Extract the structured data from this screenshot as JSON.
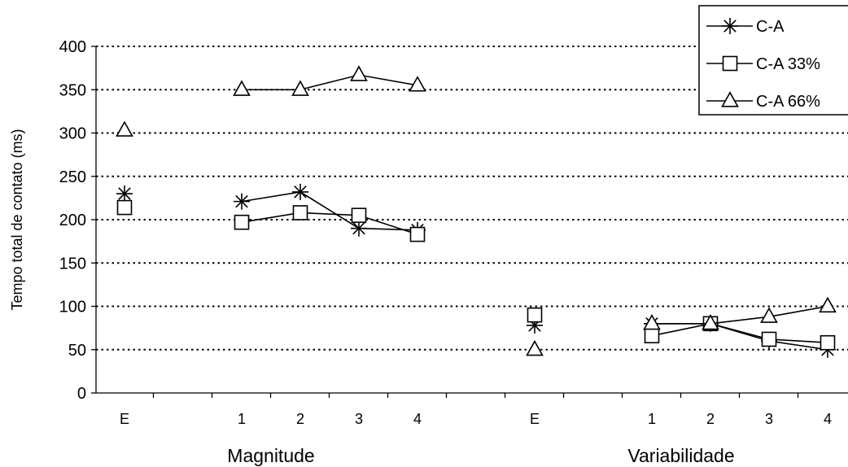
{
  "chart_data": {
    "type": "line",
    "ylabel": "Tempo total de contato (ms)",
    "ylim": [
      0,
      400
    ],
    "yticks": [
      0,
      50,
      100,
      150,
      200,
      250,
      300,
      350,
      400
    ],
    "grid": "horizontal dotted",
    "legend_position": "top-right",
    "categories": [
      "E",
      "1",
      "2",
      "3",
      "4",
      "E",
      "1",
      "2",
      "3",
      "4"
    ],
    "groups": [
      {
        "label": "Magnitude",
        "category_indices": [
          0,
          1,
          2,
          3,
          4
        ]
      },
      {
        "label": "Variabilidade",
        "category_indices": [
          5,
          6,
          7,
          8,
          9
        ]
      }
    ],
    "series": [
      {
        "name": "C-A",
        "marker": "asterisk",
        "values": [
          230,
          221,
          232,
          190,
          188,
          78,
          80,
          80,
          60,
          50
        ]
      },
      {
        "name": "C-A 33%",
        "marker": "square",
        "values": [
          214,
          197,
          208,
          205,
          183,
          90,
          66,
          80,
          62,
          58
        ]
      },
      {
        "name": "C-A 66%",
        "marker": "triangle",
        "values": [
          303,
          350,
          350,
          367,
          355,
          50,
          80,
          80,
          88,
          100
        ]
      }
    ]
  }
}
